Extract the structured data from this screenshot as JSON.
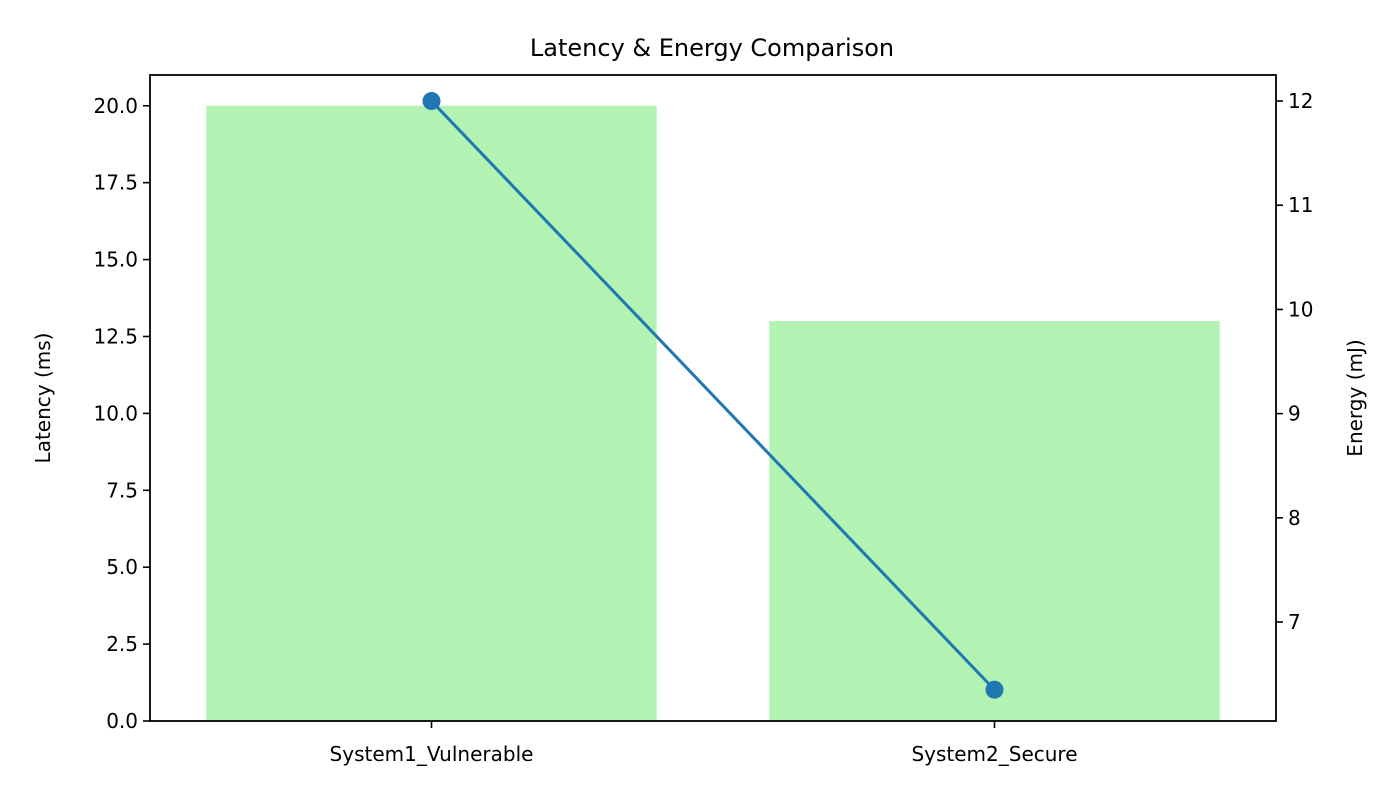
{
  "chart_data": {
    "type": "bar",
    "title": "Latency & Energy Comparison",
    "categories": [
      "System1_Vulnerable",
      "System2_Secure"
    ],
    "series": [
      {
        "axis": "left",
        "type": "bar",
        "values": [
          20.0,
          13.0
        ],
        "color": "#b2f2b2"
      },
      {
        "axis": "right",
        "type": "line",
        "values": [
          12.0,
          6.35
        ],
        "color": "#1f77b4",
        "marker": "circle"
      }
    ],
    "ylabel": "Latency (ms)",
    "ylabel_right": "Energy (mJ)",
    "ylim": [
      0,
      21
    ],
    "ylim_right": [
      6.05,
      12.25
    ],
    "yticks": [
      0.0,
      2.5,
      5.0,
      7.5,
      10.0,
      12.5,
      15.0,
      17.5,
      20.0
    ],
    "ytick_labels": [
      "0.0",
      "2.5",
      "5.0",
      "7.5",
      "10.0",
      "12.5",
      "15.0",
      "17.5",
      "20.0"
    ],
    "yticks_right": [
      7,
      8,
      9,
      10,
      11,
      12
    ],
    "ytick_labels_right": [
      "7",
      "8",
      "9",
      "10",
      "11",
      "12"
    ],
    "grid": false,
    "legend": "none"
  }
}
